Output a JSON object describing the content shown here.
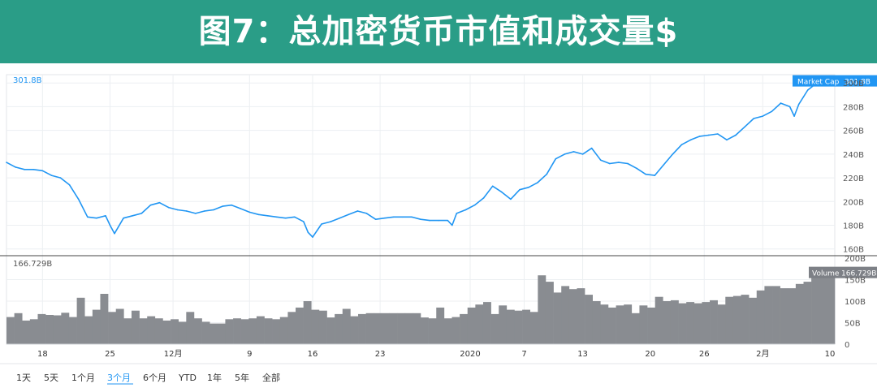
{
  "banner": {
    "title": "图7：总加密货币市值和成交量$"
  },
  "chart_data": [
    {
      "type": "line",
      "name": "market-cap",
      "current_value_label": "301.8B",
      "marker_label": "Market Cap",
      "marker_value": "301.8B",
      "y_ticks": [
        "160B",
        "180B",
        "200B",
        "220B",
        "240B",
        "260B",
        "280B",
        "300B"
      ],
      "ylim": [
        155,
        307
      ],
      "xlim": [
        0,
        92
      ],
      "line_color": "#2196f3",
      "points": [
        [
          0,
          233
        ],
        [
          1,
          229
        ],
        [
          2,
          227
        ],
        [
          3,
          227
        ],
        [
          4,
          226
        ],
        [
          5,
          222
        ],
        [
          6,
          220
        ],
        [
          7,
          214
        ],
        [
          8,
          202
        ],
        [
          9,
          187
        ],
        [
          10,
          186
        ],
        [
          11,
          188
        ],
        [
          11.5,
          180
        ],
        [
          12,
          173
        ],
        [
          13,
          186
        ],
        [
          14,
          188
        ],
        [
          15,
          190
        ],
        [
          16,
          197
        ],
        [
          17,
          199
        ],
        [
          18,
          195
        ],
        [
          19,
          193
        ],
        [
          20,
          192
        ],
        [
          21,
          190
        ],
        [
          22,
          192
        ],
        [
          23,
          193
        ],
        [
          24,
          196
        ],
        [
          25,
          197
        ],
        [
          26,
          194
        ],
        [
          27,
          191
        ],
        [
          28,
          189
        ],
        [
          29,
          188
        ],
        [
          30,
          187
        ],
        [
          31,
          186
        ],
        [
          32,
          187
        ],
        [
          33,
          183
        ],
        [
          33.5,
          174
        ],
        [
          34,
          170
        ],
        [
          35,
          181
        ],
        [
          36,
          183
        ],
        [
          37,
          186
        ],
        [
          38,
          189
        ],
        [
          39,
          192
        ],
        [
          40,
          190
        ],
        [
          41,
          185
        ],
        [
          42,
          186
        ],
        [
          43,
          187
        ],
        [
          44,
          187
        ],
        [
          45,
          187
        ],
        [
          46,
          185
        ],
        [
          47,
          184
        ],
        [
          48,
          184
        ],
        [
          49,
          184
        ],
        [
          49.5,
          180
        ],
        [
          50,
          190
        ],
        [
          51,
          193
        ],
        [
          52,
          197
        ],
        [
          53,
          203
        ],
        [
          54,
          213
        ],
        [
          55,
          208
        ],
        [
          56,
          202
        ],
        [
          57,
          210
        ],
        [
          58,
          212
        ],
        [
          59,
          216
        ],
        [
          60,
          223
        ],
        [
          61,
          236
        ],
        [
          62,
          240
        ],
        [
          63,
          242
        ],
        [
          64,
          240
        ],
        [
          65,
          245
        ],
        [
          66,
          235
        ],
        [
          67,
          232
        ],
        [
          68,
          233
        ],
        [
          69,
          232
        ],
        [
          70,
          228
        ],
        [
          71,
          223
        ],
        [
          72,
          222
        ],
        [
          73,
          231
        ],
        [
          74,
          240
        ],
        [
          75,
          248
        ],
        [
          76,
          252
        ],
        [
          77,
          255
        ],
        [
          78,
          256
        ],
        [
          79,
          257
        ],
        [
          80,
          252
        ],
        [
          81,
          256
        ],
        [
          82,
          263
        ],
        [
          83,
          270
        ],
        [
          84,
          272
        ],
        [
          85,
          276
        ],
        [
          86,
          283
        ],
        [
          87,
          280
        ],
        [
          87.5,
          272
        ],
        [
          88,
          282
        ],
        [
          89,
          294
        ],
        [
          90,
          300
        ],
        [
          91,
          301.8
        ]
      ]
    },
    {
      "type": "bar",
      "name": "volume",
      "current_value_label": "166.729B",
      "marker_label": "Volume",
      "marker_value": "166.729B",
      "y_ticks": [
        "0",
        "50B",
        "100B",
        "150B",
        "200B"
      ],
      "ylim": [
        0,
        200
      ],
      "bar_color": "#898c91",
      "values": [
        63,
        72,
        55,
        58,
        70,
        68,
        67,
        73,
        63,
        108,
        65,
        80,
        117,
        75,
        82,
        60,
        78,
        60,
        65,
        60,
        55,
        58,
        52,
        75,
        60,
        52,
        48,
        48,
        58,
        60,
        58,
        60,
        65,
        60,
        58,
        63,
        75,
        85,
        100,
        80,
        78,
        62,
        70,
        82,
        65,
        70,
        72,
        72,
        72,
        72,
        72,
        72,
        72,
        62,
        60,
        85,
        60,
        63,
        70,
        85,
        92,
        98,
        70,
        90,
        80,
        78,
        80,
        75,
        160,
        145,
        120,
        135,
        128,
        130,
        115,
        100,
        92,
        85,
        90,
        92,
        72,
        90,
        85,
        110,
        100,
        102,
        95,
        98,
        95,
        98,
        102,
        92,
        110,
        112,
        115,
        108,
        125,
        135,
        135,
        130,
        130,
        140,
        145,
        160,
        166.729,
        166.729
      ]
    }
  ],
  "x_ticks": [
    {
      "label": "18",
      "x": 4
    },
    {
      "label": "25",
      "x": 11.5
    },
    {
      "label": "12月",
      "x": 18.5
    },
    {
      "label": "9",
      "x": 27
    },
    {
      "label": "16",
      "x": 34
    },
    {
      "label": "23",
      "x": 41.5
    },
    {
      "label": "2020",
      "x": 51.5
    },
    {
      "label": "7",
      "x": 57.5
    },
    {
      "label": "13",
      "x": 64
    },
    {
      "label": "20",
      "x": 71.5
    },
    {
      "label": "26",
      "x": 77.5
    },
    {
      "label": "2月",
      "x": 84
    },
    {
      "label": "10",
      "x": 93.5
    }
  ],
  "range_buttons": [
    {
      "label": "1天",
      "active": false
    },
    {
      "label": "5天",
      "active": false
    },
    {
      "label": "1个月",
      "active": false
    },
    {
      "label": "3个月",
      "active": true
    },
    {
      "label": "6个月",
      "active": false
    },
    {
      "label": "YTD",
      "active": false
    },
    {
      "label": "1年",
      "active": false
    },
    {
      "label": "5年",
      "active": false
    },
    {
      "label": "全部",
      "active": false
    }
  ]
}
